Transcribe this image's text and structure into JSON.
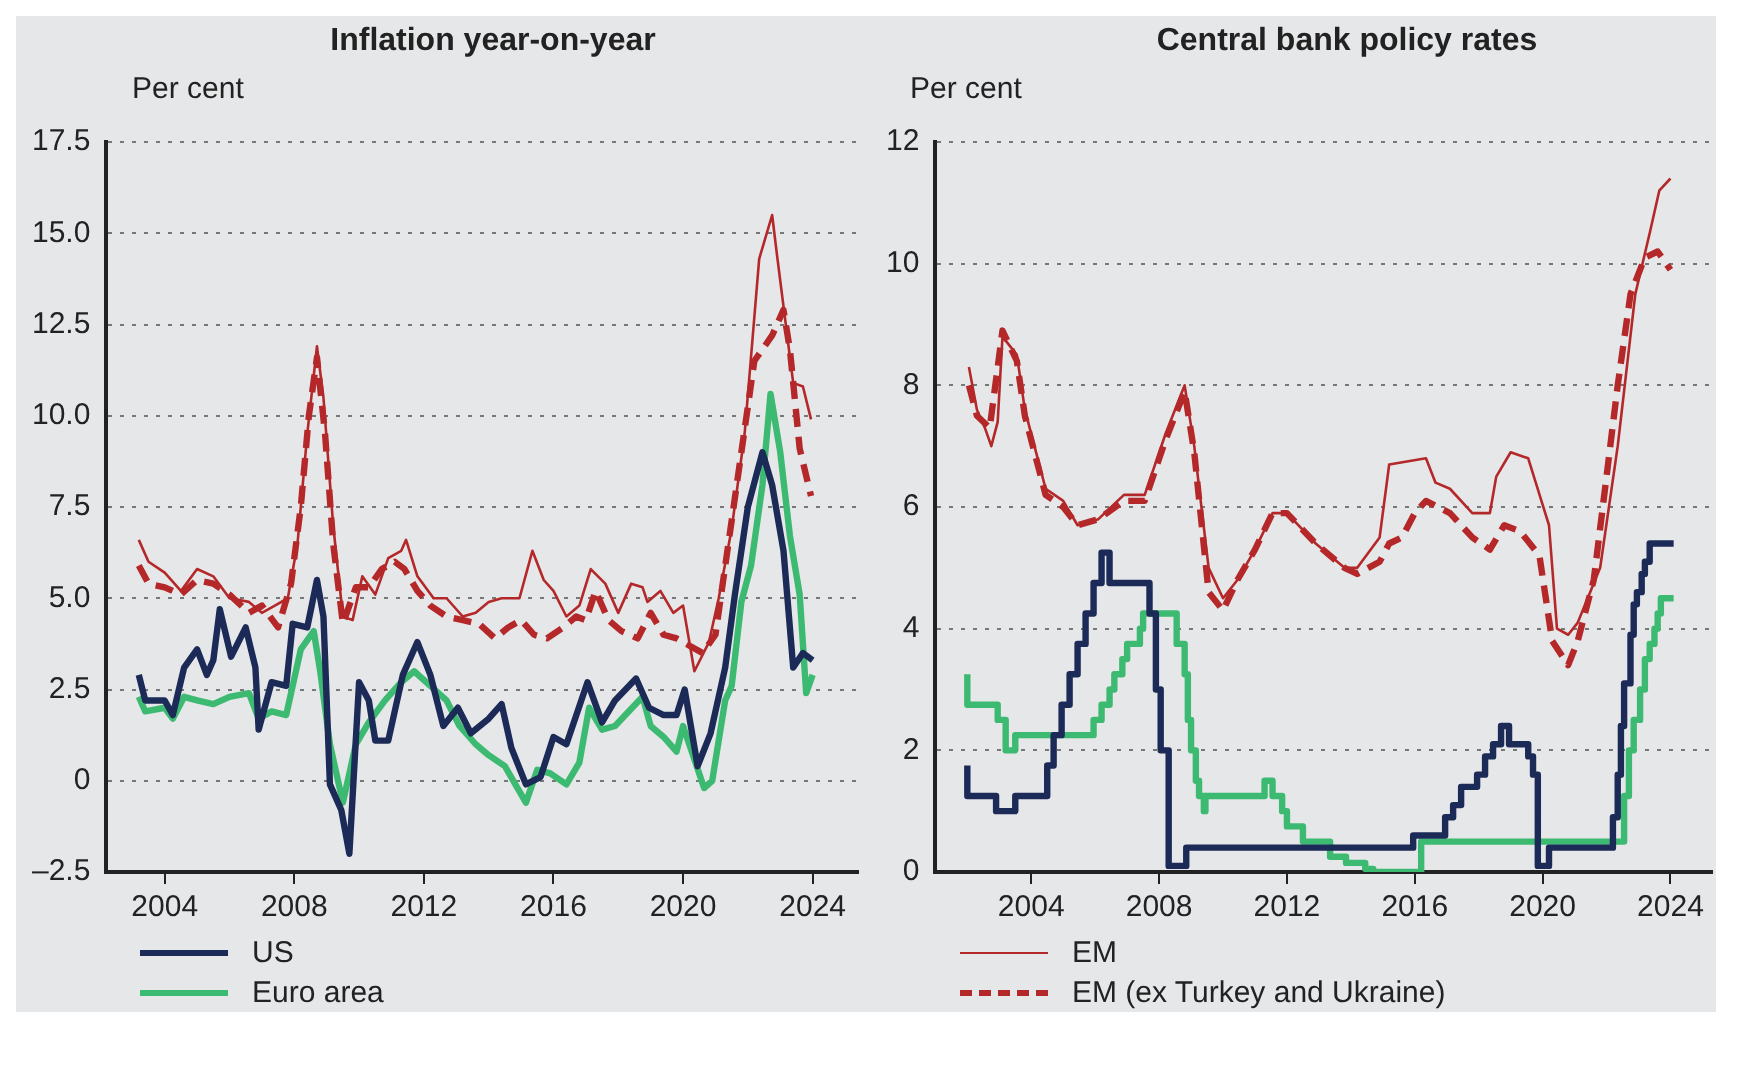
{
  "chart_data": [
    {
      "type": "line",
      "title": "Inflation year-on-year",
      "ylabel": "Per cent",
      "xlim": [
        2002.2,
        2025.4
      ],
      "xticks": [
        2004,
        2008,
        2012,
        2016,
        2020,
        2024
      ],
      "ylim": [
        -2.5,
        17.5
      ],
      "yticks": [
        {
          "value": -2.5,
          "label": "–2.5"
        },
        {
          "value": 0,
          "label": "0"
        },
        {
          "value": 2.5,
          "label": "2.5"
        },
        {
          "value": 5,
          "label": "5.0"
        },
        {
          "value": 7.5,
          "label": "7.5"
        },
        {
          "value": 10,
          "label": "10.0"
        },
        {
          "value": 12.5,
          "label": "12.5"
        },
        {
          "value": 15,
          "label": "15.0"
        },
        {
          "value": 17.5,
          "label": "17.5"
        }
      ],
      "grid": "y",
      "legend": "bottom",
      "marker": "none",
      "series": [
        {
          "name": "US",
          "color": "#1b2a56",
          "x": [
            2003.2,
            2003.4,
            2004,
            2004.25,
            2004.6,
            2005,
            2005.3,
            2005.5,
            2005.7,
            2006.05,
            2006.5,
            2006.8,
            2006.9,
            2007.3,
            2007.75,
            2007.95,
            2008.4,
            2008.7,
            2008.9,
            2009.1,
            2009.45,
            2009.7,
            2010,
            2010.3,
            2010.5,
            2010.9,
            2011.35,
            2011.8,
            2012.2,
            2012.6,
            2013.05,
            2013.45,
            2014,
            2014.4,
            2014.7,
            2015.15,
            2015.6,
            2016,
            2016.4,
            2017.05,
            2017.5,
            2017.9,
            2018.55,
            2018.95,
            2019.4,
            2019.8,
            2020.05,
            2020.45,
            2020.85,
            2021.3,
            2021.6,
            2022,
            2022.45,
            2022.75,
            2023.1,
            2023.4,
            2023.7,
            2024
          ],
          "values": [
            2.9,
            2.2,
            2.2,
            1.8,
            3.1,
            3.6,
            2.9,
            3.3,
            4.7,
            3.4,
            4.2,
            3.1,
            1.4,
            2.7,
            2.6,
            4.3,
            4.2,
            5.5,
            4.5,
            -0.1,
            -0.8,
            -2,
            2.7,
            2.2,
            1.1,
            1.1,
            2.9,
            3.8,
            2.9,
            1.5,
            2,
            1.3,
            1.7,
            2.1,
            0.9,
            -0.1,
            0.1,
            1.2,
            1,
            2.7,
            1.6,
            2.2,
            2.8,
            2,
            1.8,
            1.8,
            2.5,
            0.4,
            1.3,
            3.1,
            5.1,
            7.5,
            9,
            8.1,
            6.3,
            3.1,
            3.5,
            3.3
          ]
        },
        {
          "name": "Euro area",
          "color": "#3dba72",
          "x": [
            2003.2,
            2003.4,
            2004,
            2004.25,
            2004.6,
            2005,
            2005.5,
            2006,
            2006.6,
            2006.9,
            2007.3,
            2007.75,
            2008.2,
            2008.6,
            2008.8,
            2009.1,
            2009.5,
            2009.9,
            2010.3,
            2010.8,
            2011.3,
            2011.7,
            2012.2,
            2012.7,
            2013.1,
            2013.6,
            2014,
            2014.5,
            2015.15,
            2015.5,
            2015.9,
            2016.4,
            2016.8,
            2017.1,
            2017.5,
            2017.9,
            2018.75,
            2019,
            2019.4,
            2019.8,
            2020,
            2020.65,
            2020.9,
            2021.3,
            2021.5,
            2021.8,
            2022.1,
            2022.45,
            2022.7,
            2023,
            2023.3,
            2023.6,
            2023.8,
            2024
          ],
          "values": [
            2.3,
            1.9,
            2,
            1.7,
            2.3,
            2.2,
            2.1,
            2.3,
            2.4,
            1.7,
            1.9,
            1.8,
            3.6,
            4.1,
            3,
            1,
            -0.6,
            1,
            1.6,
            2.2,
            2.7,
            3,
            2.6,
            2.2,
            1.5,
            1,
            0.7,
            0.4,
            -0.6,
            0.3,
            0.2,
            -0.1,
            0.5,
            2,
            1.4,
            1.5,
            2.3,
            1.5,
            1.2,
            0.8,
            1.5,
            -0.2,
            0,
            2.2,
            2.6,
            4.9,
            5.9,
            8.1,
            10.6,
            9,
            6.7,
            5.1,
            2.4,
            2.9
          ]
        },
        {
          "name": "EM",
          "color": "#b5282a",
          "x": [
            2003.2,
            2003.5,
            2004,
            2004.5,
            2005,
            2005.5,
            2006,
            2006.6,
            2007,
            2007.4,
            2007.8,
            2008.1,
            2008.4,
            2008.7,
            2008.9,
            2009.2,
            2009.5,
            2009.8,
            2010.1,
            2010.5,
            2010.9,
            2011.3,
            2011.45,
            2011.8,
            2012.3,
            2012.7,
            2013.2,
            2013.6,
            2014,
            2014.4,
            2014.95,
            2015.35,
            2015.7,
            2016,
            2016.4,
            2016.8,
            2017.15,
            2017.6,
            2018,
            2018.4,
            2018.75,
            2018.9,
            2019.3,
            2019.7,
            2020,
            2020.35,
            2020.8,
            2021.1,
            2021.5,
            2021.9,
            2022.35,
            2022.75,
            2022.9,
            2023.2,
            2023.4,
            2023.7,
            2023.95
          ],
          "values": [
            6.6,
            6,
            5.7,
            5.2,
            5.8,
            5.6,
            5,
            4.9,
            4.6,
            4.8,
            5,
            6.5,
            9.5,
            11.9,
            10.5,
            7,
            4.5,
            4.4,
            5.6,
            5.1,
            6.1,
            6.3,
            6.6,
            5.6,
            5,
            5,
            4.5,
            4.6,
            4.9,
            5,
            5,
            6.3,
            5.5,
            5.2,
            4.5,
            4.8,
            5.8,
            5.4,
            4.6,
            5.4,
            5.3,
            4.9,
            5.2,
            4.6,
            4.8,
            3,
            3.8,
            5,
            6.9,
            9.5,
            14.3,
            15.5,
            14.4,
            12.3,
            10.9,
            10.8,
            9.9
          ]
        },
        {
          "name": "EM (ex Turkey and Ukraine)",
          "color": "#b5282a",
          "line_style": "dashed",
          "x": [
            2003.2,
            2003.5,
            2004,
            2004.5,
            2005,
            2005.5,
            2006,
            2006.6,
            2007,
            2007.5,
            2007.9,
            2008.2,
            2008.45,
            2008.7,
            2008.95,
            2009.2,
            2009.5,
            2009.9,
            2010.3,
            2010.7,
            2011.1,
            2011.4,
            2011.8,
            2012.2,
            2012.7,
            2013.2,
            2013.7,
            2014.2,
            2014.6,
            2015,
            2015.4,
            2015.8,
            2016.3,
            2016.7,
            2017,
            2017.3,
            2017.7,
            2018.1,
            2018.6,
            2019,
            2019.4,
            2019.8,
            2020.2,
            2020.6,
            2021,
            2021.4,
            2021.8,
            2022.2,
            2022.75,
            2023.1,
            2023.3,
            2023.6,
            2023.95
          ],
          "values": [
            5.9,
            5.4,
            5.3,
            5.1,
            5.5,
            5.4,
            5.1,
            4.6,
            4.8,
            4.2,
            5.4,
            7.5,
            10,
            11.6,
            9.5,
            6.5,
            4.3,
            5.3,
            5.3,
            5.8,
            6,
            5.8,
            5.2,
            4.8,
            4.5,
            4.4,
            4.3,
            3.9,
            4.2,
            4.4,
            4,
            3.9,
            4.2,
            4.5,
            4.4,
            5.2,
            4.4,
            4.1,
            3.9,
            4.6,
            4,
            3.9,
            3.7,
            3.5,
            4,
            6.5,
            9,
            11.5,
            12.2,
            12.9,
            11.8,
            9.1,
            7.8
          ]
        }
      ]
    },
    {
      "type": "line",
      "title": "Central bank policy rates",
      "ylabel": "Per cent",
      "xlim": [
        2001,
        2025.3
      ],
      "xticks": [
        2004,
        2008,
        2012,
        2016,
        2020,
        2024
      ],
      "ylim": [
        0,
        12
      ],
      "yticks": [
        0,
        2,
        4,
        6,
        8,
        10,
        12
      ],
      "grid": "y",
      "legend": "bottom",
      "marker": "none",
      "series": [
        {
          "name": "US",
          "color": "#1b2a56",
          "type": "step",
          "x": [
            2002,
            2002.9,
            2003.5,
            2004.5,
            2004.7,
            2004.95,
            2005.2,
            2005.45,
            2005.7,
            2005.95,
            2006.2,
            2006.45,
            2007.7,
            2007.9,
            2008.05,
            2008.3,
            2008.85,
            2015.95,
            2016.95,
            2017.2,
            2017.45,
            2017.95,
            2018.2,
            2018.45,
            2018.7,
            2018.95,
            2019.55,
            2019.7,
            2019.85,
            2020.2,
            2022.2,
            2022.35,
            2022.45,
            2022.55,
            2022.75,
            2022.85,
            2022.95,
            2023.1,
            2023.2,
            2023.35,
            2023.55,
            2024.1
          ],
          "values": [
            1.75,
            1.25,
            1,
            1.25,
            1.75,
            2.25,
            2.75,
            3.25,
            3.75,
            4.25,
            4.75,
            5.25,
            4.75,
            4.25,
            3,
            2,
            0.1,
            0.4,
            0.6,
            0.9,
            1.1,
            1.4,
            1.6,
            1.9,
            2.1,
            2.4,
            2.1,
            1.9,
            1.6,
            0.1,
            0.4,
            0.9,
            1.6,
            2.4,
            3.1,
            3.9,
            4.4,
            4.6,
            4.9,
            5.1,
            5.4,
            5.4
          ]
        },
        {
          "name": "Euro area",
          "color": "#3dba72",
          "type": "step",
          "x": [
            2002,
            2002.95,
            2003.2,
            2003.5,
            2005.95,
            2006.2,
            2006.45,
            2006.6,
            2006.85,
            2007,
            2007.4,
            2007.5,
            2008.55,
            2008.8,
            2008.9,
            2009,
            2009.15,
            2009.25,
            2009.4,
            2009.45,
            2011.3,
            2011.55,
            2011.85,
            2012,
            2012.5,
            2013.35,
            2013.85,
            2014.45,
            2014.7,
            2016.2,
            2022.55,
            2022.7,
            2022.85,
            2023.05,
            2023.2,
            2023.35,
            2023.5,
            2023.6,
            2023.7,
            2023.8,
            2024.1
          ],
          "values": [
            3.25,
            2.75,
            2.5,
            2,
            2.25,
            2.5,
            2.75,
            3,
            3.25,
            3.5,
            3.75,
            4,
            4.25,
            3.75,
            3.25,
            2.5,
            2,
            1.5,
            1.25,
            1,
            1.25,
            1.5,
            1.25,
            1,
            0.75,
            0.5,
            0.25,
            0.15,
            0.05,
            0,
            0.5,
            1.25,
            2,
            2.5,
            3,
            3.5,
            3.75,
            4,
            4.25,
            4.5,
            4.5
          ]
        },
        {
          "name": "EM",
          "color": "#b5282a",
          "x": [
            2002.05,
            2002.3,
            2002.55,
            2002.75,
            2002.95,
            2003.1,
            2003.55,
            2003.8,
            2004.1,
            2004.45,
            2005,
            2005.45,
            2006.1,
            2006.9,
            2007.55,
            2008.2,
            2008.8,
            2009.1,
            2009.55,
            2010,
            2010.45,
            2011,
            2011.55,
            2012,
            2012.9,
            2013.8,
            2014.2,
            2014.9,
            2015.2,
            2016.35,
            2016.65,
            2017.1,
            2017.8,
            2018.35,
            2018.55,
            2019,
            2019.55,
            2020.2,
            2020.45,
            2020.8,
            2021.1,
            2021.8,
            2022.35,
            2022.9,
            2023.35,
            2023.65,
            2024
          ],
          "values": [
            8.3,
            7.6,
            7.3,
            7,
            7.4,
            8.8,
            8.5,
            7.6,
            7,
            6.3,
            6.1,
            5.7,
            5.8,
            6.2,
            6.2,
            7.2,
            8,
            7,
            5,
            4.5,
            4.8,
            5.3,
            5.9,
            5.9,
            5.4,
            5,
            5,
            5.5,
            6.7,
            6.8,
            6.4,
            6.3,
            5.9,
            5.9,
            6.5,
            6.9,
            6.8,
            5.7,
            4,
            3.9,
            4.1,
            5,
            7,
            9.5,
            10.5,
            11.2,
            11.4
          ]
        },
        {
          "name": "EM (ex Turkey and Ukraine)",
          "color": "#b5282a",
          "line_style": "dashed",
          "x": [
            2002.05,
            2002.3,
            2002.7,
            2003.1,
            2003.55,
            2003.8,
            2004.1,
            2004.45,
            2005,
            2005.45,
            2006.1,
            2006.9,
            2007.55,
            2008.2,
            2008.8,
            2009.1,
            2009.55,
            2010,
            2010.45,
            2011,
            2011.55,
            2012,
            2012.9,
            2013.8,
            2014.2,
            2014.9,
            2015.2,
            2015.6,
            2016,
            2016.35,
            2017.1,
            2017.8,
            2018.35,
            2018.8,
            2019.3,
            2019.9,
            2020.3,
            2020.8,
            2021.1,
            2021.6,
            2022,
            2022.35,
            2022.75,
            2023.2,
            2023.6,
            2024
          ],
          "values": [
            8,
            7.5,
            7.3,
            8.9,
            8.4,
            7.5,
            6.9,
            6.2,
            6,
            5.7,
            5.8,
            6.1,
            6.1,
            7.1,
            7.9,
            6.9,
            4.6,
            4.3,
            4.8,
            5.3,
            5.9,
            5.9,
            5.4,
            5,
            4.9,
            5.1,
            5.4,
            5.5,
            5.9,
            6.1,
            5.9,
            5.5,
            5.3,
            5.7,
            5.6,
            5.2,
            3.8,
            3.4,
            3.8,
            4.8,
            6.5,
            8,
            9.5,
            10.1,
            10.2,
            9.9
          ]
        }
      ]
    }
  ]
}
